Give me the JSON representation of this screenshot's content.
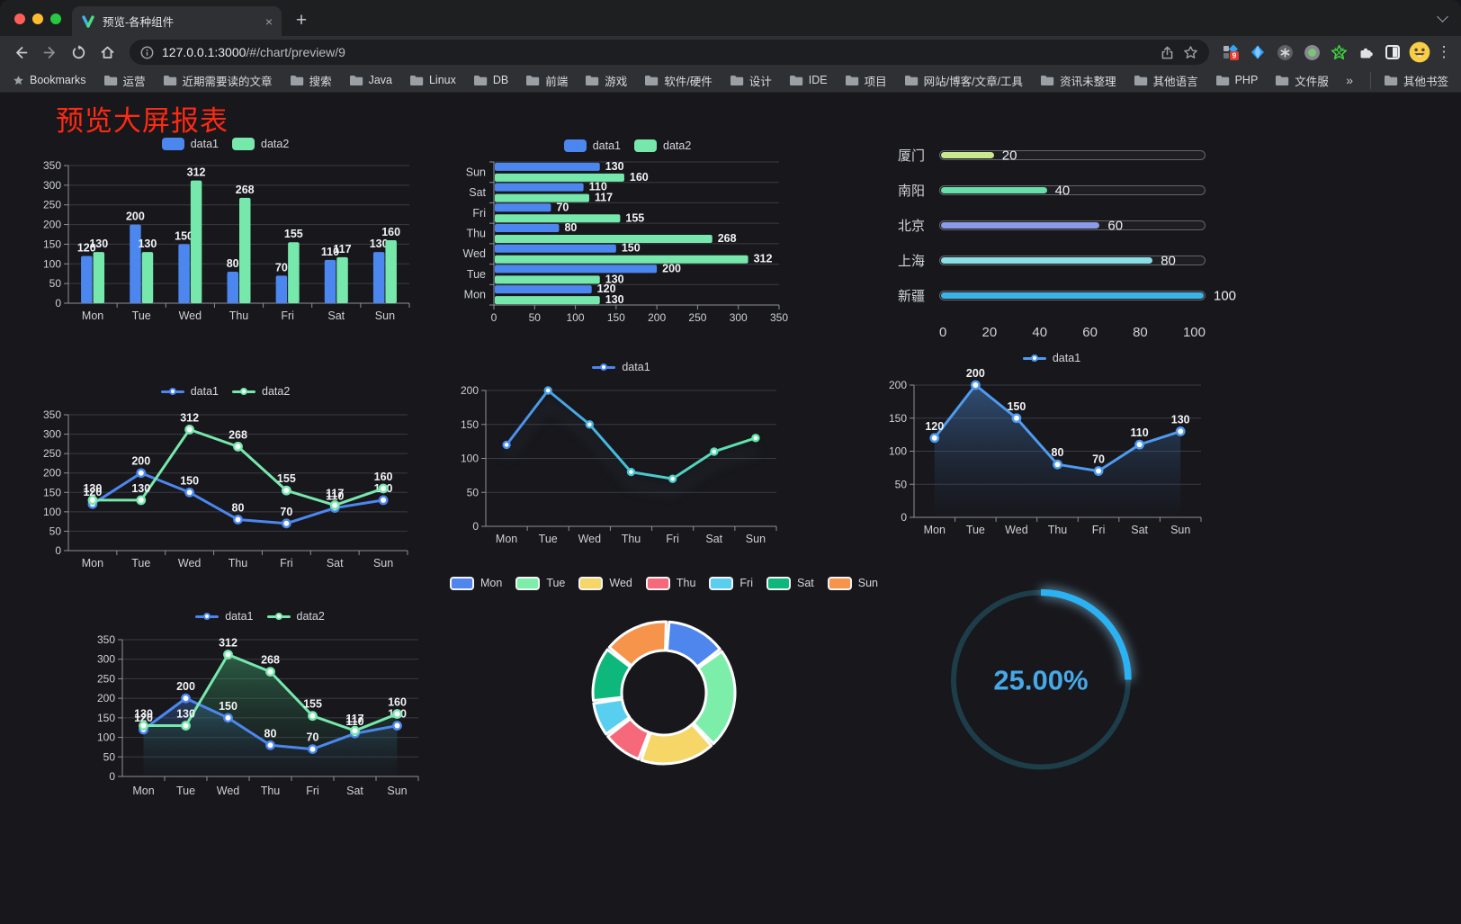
{
  "browser": {
    "tab_title": "预览-各种组件",
    "close_tab": "×",
    "new_tab": "+",
    "url_host": "127.0.0.1:3000",
    "url_path": "/#/chart/preview/9",
    "extension_badge": "9",
    "menu": "⋮",
    "bookmarks_label": "Bookmarks",
    "bookmark_folders": [
      "运营",
      "近期需要读的文章",
      "搜索",
      "Java",
      "Linux",
      "DB",
      "前端",
      "游戏",
      "软件/硬件",
      "设计",
      "IDE",
      "项目",
      "网站/博客/文章/工具",
      "资讯未整理",
      "其他语言",
      "PHP",
      "文件服务器"
    ],
    "bookmarks_overflow": "»",
    "other_bookmarks": "其他书签"
  },
  "page": {
    "title": "预览大屏报表"
  },
  "theme": {
    "accent_blue": "#4c87f0",
    "accent_green": "#77e8ac",
    "axis": "#8e9198",
    "grid": "#3a3c43",
    "tick_label": "#ced1d6",
    "value_label": "#f2f3f5",
    "legend_text": "#d4d6db",
    "title_red": "#fe2a12"
  },
  "chart_data": [
    {
      "id": "c1",
      "type": "bar",
      "categories": [
        "Mon",
        "Tue",
        "Wed",
        "Thu",
        "Fri",
        "Sat",
        "Sun"
      ],
      "ylim": [
        0,
        350
      ],
      "ytick": 50,
      "legend_position": "top",
      "grid": true,
      "series": [
        {
          "name": "data1",
          "color": "#4c87f0",
          "values": [
            120,
            200,
            150,
            80,
            70,
            110,
            130
          ]
        },
        {
          "name": "data2",
          "color": "#77e8ac",
          "values": [
            130,
            130,
            312,
            268,
            155,
            117,
            160
          ]
        }
      ]
    },
    {
      "id": "c2",
      "type": "hbar",
      "categories": [
        "Mon",
        "Tue",
        "Wed",
        "Thu",
        "Fri",
        "Sat",
        "Sun"
      ],
      "xlim": [
        0,
        350
      ],
      "xtick": 50,
      "legend_position": "top",
      "grid": true,
      "series": [
        {
          "name": "data1",
          "color": "#4c87f0",
          "values": [
            120,
            200,
            150,
            80,
            70,
            110,
            130
          ]
        },
        {
          "name": "data2",
          "color": "#77e8ac",
          "values": [
            130,
            130,
            312,
            268,
            155,
            117,
            160
          ]
        }
      ]
    },
    {
      "id": "c3",
      "type": "progress",
      "axis_ticks": [
        0,
        20,
        40,
        60,
        80,
        100
      ],
      "xlim": [
        0,
        100
      ],
      "items": [
        {
          "label": "厦门",
          "value": 20,
          "color": "#c9e98e"
        },
        {
          "label": "南阳",
          "value": 40,
          "color": "#66dfa8"
        },
        {
          "label": "北京",
          "value": 60,
          "color": "#8c9be8"
        },
        {
          "label": "上海",
          "value": 80,
          "color": "#8adfe6"
        },
        {
          "label": "新疆",
          "value": 100,
          "color": "#3cb3e6"
        }
      ]
    },
    {
      "id": "c4",
      "type": "line",
      "categories": [
        "Mon",
        "Tue",
        "Wed",
        "Thu",
        "Fri",
        "Sat",
        "Sun"
      ],
      "ylim": [
        0,
        350
      ],
      "ytick": 50,
      "labels": true,
      "legend_position": "top",
      "series": [
        {
          "name": "data1",
          "color": "#4c87f0",
          "values": [
            120,
            200,
            150,
            80,
            70,
            110,
            130
          ]
        },
        {
          "name": "data2",
          "color": "#77e8ac",
          "values": [
            130,
            130,
            312,
            268,
            155,
            117,
            160
          ]
        }
      ]
    },
    {
      "id": "c5",
      "type": "line",
      "categories": [
        "Mon",
        "Tue",
        "Wed",
        "Thu",
        "Fri",
        "Sat",
        "Sun"
      ],
      "ylim": [
        0,
        200
      ],
      "ytick": 50,
      "labels": false,
      "legend_position": "top",
      "series": [
        {
          "name": "data1",
          "color": "#4c87f0",
          "gradient": [
            "#4a8df0",
            "#45c2d8",
            "#63e6a5"
          ],
          "values": [
            120,
            200,
            150,
            80,
            70,
            110,
            130
          ],
          "markerR": 3.5
        }
      ]
    },
    {
      "id": "c6",
      "type": "line",
      "categories": [
        "Mon",
        "Tue",
        "Wed",
        "Thu",
        "Fri",
        "Sat",
        "Sun"
      ],
      "ylim": [
        0,
        200
      ],
      "ytick": 50,
      "labels": true,
      "legend_position": "top",
      "series": [
        {
          "name": "data1",
          "color": "#4e9bf0",
          "area": [
            "rgba(70,125,190,0.55)",
            "rgba(40,60,90,0.03)"
          ],
          "values": [
            120,
            200,
            150,
            80,
            70,
            110,
            130
          ]
        }
      ]
    },
    {
      "id": "c7",
      "type": "line",
      "categories": [
        "Mon",
        "Tue",
        "Wed",
        "Thu",
        "Fri",
        "Sat",
        "Sun"
      ],
      "ylim": [
        0,
        350
      ],
      "ytick": 50,
      "labels": true,
      "legend_position": "top",
      "series": [
        {
          "name": "data1",
          "color": "#4c87f0",
          "area": [
            "rgba(60,110,180,0.45)",
            "rgba(30,50,80,0.03)"
          ],
          "values": [
            120,
            200,
            150,
            80,
            70,
            110,
            130
          ]
        },
        {
          "name": "data2",
          "color": "#77e8ac",
          "area": [
            "rgba(70,180,120,0.45)",
            "rgba(30,70,50,0.03)"
          ],
          "values": [
            130,
            130,
            312,
            268,
            155,
            117,
            160
          ]
        }
      ]
    },
    {
      "id": "c8",
      "type": "pie",
      "inner_radius": 47,
      "outer_radius": 79,
      "legend_position": "top",
      "items": [
        {
          "label": "Mon",
          "value": 120,
          "color": "#4e86ee"
        },
        {
          "label": "Tue",
          "value": 200,
          "color": "#7deeaa"
        },
        {
          "label": "Wed",
          "value": 150,
          "color": "#f5d666"
        },
        {
          "label": "Thu",
          "value": 80,
          "color": "#f5697a"
        },
        {
          "label": "Fri",
          "value": 70,
          "color": "#59cff0"
        },
        {
          "label": "Sat",
          "value": 110,
          "color": "#0eb87d"
        },
        {
          "label": "Sun",
          "value": 130,
          "color": "#f5944a"
        }
      ]
    },
    {
      "id": "c9",
      "type": "gauge",
      "value": 25,
      "label": "25.00%",
      "color": "#2ab2f2",
      "track_color": "#1d3d49",
      "text_color": "#47a8e8"
    }
  ]
}
